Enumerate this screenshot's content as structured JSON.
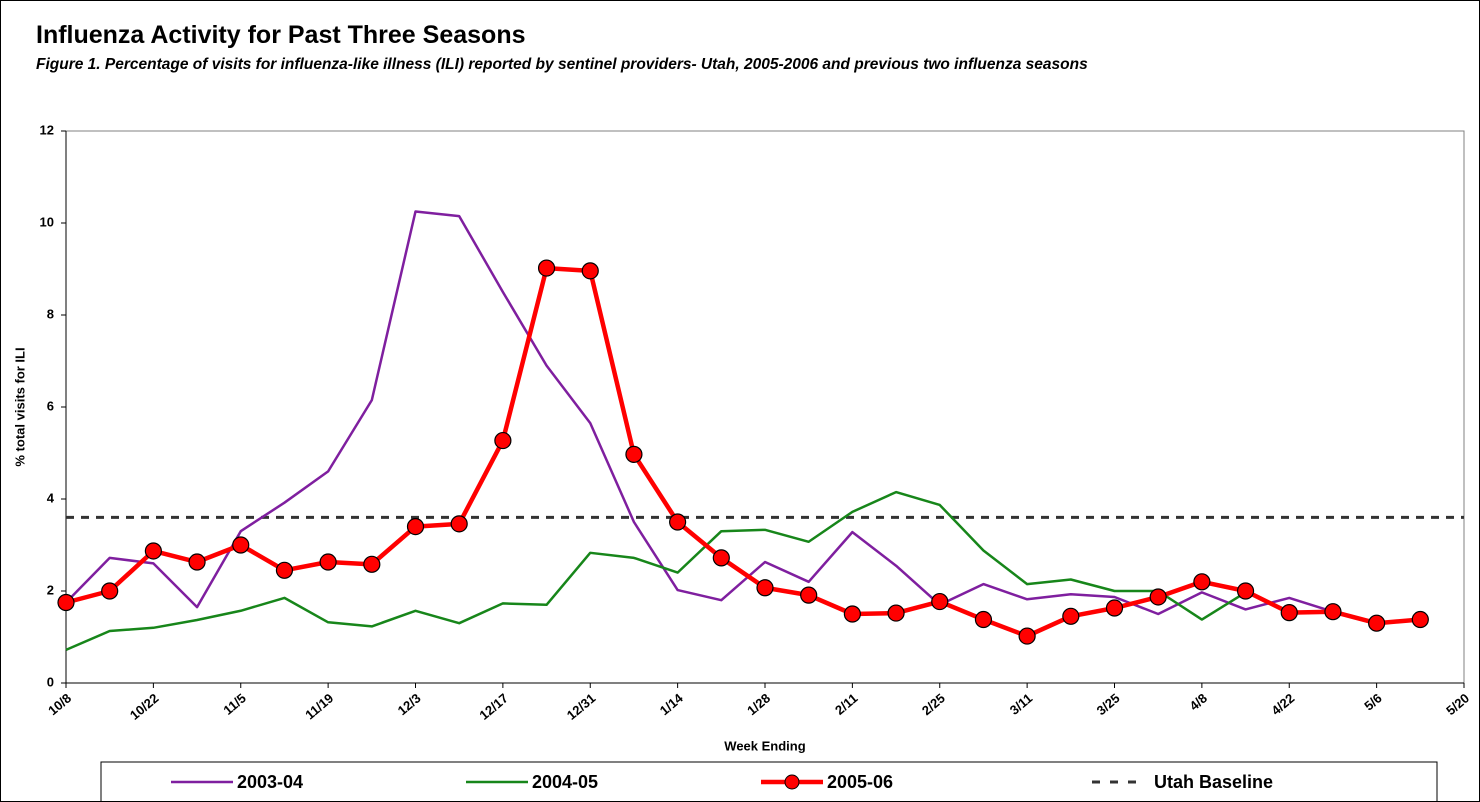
{
  "chart_data": {
    "type": "line",
    "title": "Influenza Activity for Past Three Seasons",
    "subtitle": "Figure 1. Percentage of visits for influenza-like illness (ILI) reported by sentinel providers- Utah, 2005-2006 and previous two influenza seasons",
    "x_label": "Week Ending",
    "y_label": "% total visits for ILI",
    "categories": [
      "10/8",
      null,
      "10/22",
      null,
      "11/5",
      null,
      "11/19",
      null,
      "12/3",
      null,
      "12/17",
      null,
      "12/31",
      null,
      "1/14",
      null,
      "1/28",
      null,
      "2/11",
      null,
      "2/25",
      null,
      "3/11",
      null,
      "3/25",
      null,
      "4/8",
      null,
      "4/22",
      null,
      "5/6",
      null,
      "5/20"
    ],
    "series": [
      {
        "name": "2003-04",
        "color": "#7f1f9f",
        "marker": false,
        "values": [
          1.75,
          2.72,
          2.6,
          1.65,
          3.3,
          3.92,
          4.6,
          6.15,
          10.25,
          10.15,
          8.5,
          6.9,
          5.65,
          3.5,
          2.02,
          1.8,
          2.63,
          2.2,
          3.28,
          2.55,
          1.7,
          2.15,
          1.82,
          1.93,
          1.87,
          1.5,
          1.97,
          1.6,
          1.85,
          1.55,
          null,
          null,
          null
        ]
      },
      {
        "name": "2004-05",
        "color": "#17861a",
        "marker": false,
        "values": [
          0.72,
          1.13,
          1.2,
          1.37,
          1.57,
          1.85,
          1.32,
          1.23,
          1.57,
          1.3,
          1.73,
          1.7,
          2.83,
          2.72,
          2.4,
          3.3,
          3.33,
          3.07,
          3.72,
          4.15,
          3.87,
          2.88,
          2.15,
          2.25,
          2.0,
          2.0,
          1.38,
          1.97,
          null,
          null,
          null,
          null,
          null
        ]
      },
      {
        "name": "2005-06",
        "color": "#ff0000",
        "marker": true,
        "values": [
          1.75,
          2.0,
          2.87,
          2.63,
          3.0,
          2.45,
          2.63,
          2.58,
          3.4,
          3.46,
          5.27,
          9.02,
          8.96,
          4.97,
          3.5,
          2.72,
          2.07,
          1.91,
          1.5,
          1.52,
          1.77,
          1.38,
          1.02,
          1.45,
          1.63,
          1.87,
          2.2,
          2.0,
          1.53,
          1.55,
          1.3,
          1.38,
          null
        ]
      }
    ],
    "baseline": {
      "name": "Utah Baseline",
      "value": 3.6,
      "color": "#333333"
    },
    "ylim": [
      0,
      12
    ],
    "yticks": [
      0,
      2,
      4,
      6,
      8,
      10,
      12
    ],
    "grid": false
  }
}
